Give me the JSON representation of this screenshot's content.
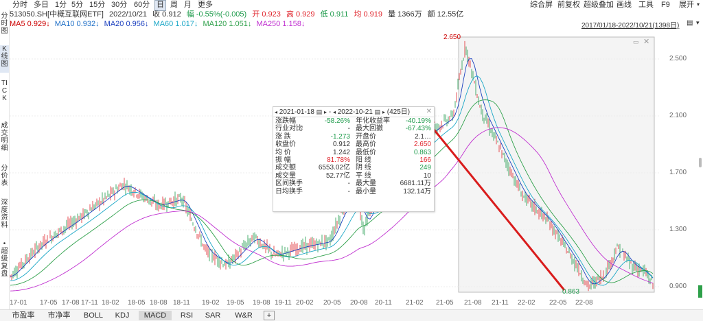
{
  "periods": [
    "分时",
    "多日",
    "1分",
    "5分",
    "15分",
    "30分",
    "60分",
    "日",
    "周",
    "月",
    "更多"
  ],
  "active_period": "日",
  "toolbar": [
    "综合屏",
    "前复权",
    "超级叠加",
    "画线",
    "工具",
    "F9",
    "展开"
  ],
  "quote": {
    "code": "513050.SH[中概互联网ETF]",
    "date": "2022/10/21",
    "close": "收 0.912",
    "change": "幅 -0.55%(-0.005)",
    "open": "开 0.923",
    "high": "高 0.929",
    "low": "低 0.911",
    "avg": "均 0.919",
    "volume": "量 1366万",
    "amount": "额 12.55亿"
  },
  "ma": [
    {
      "label": "MA5 0.929↓",
      "color": "#cc0000"
    },
    {
      "label": "MA10 0.932↓",
      "color": "#1e6fc7"
    },
    {
      "label": "MA20 0.956↓",
      "color": "#1a3fbf"
    },
    {
      "label": "MA60 1.017↓",
      "color": "#1ca7c7"
    },
    {
      "label": "MA120 1.051↓",
      "color": "#2ea04a"
    },
    {
      "label": "MA250 1.158↓",
      "color": "#c030d0"
    }
  ],
  "date_range": "2017/01/18-2022/10/21(1398日)",
  "left_tabs": [
    "分时图",
    "K线图",
    "TICK",
    "成交明细",
    "分价表",
    "深度资料",
    "•超级复盘"
  ],
  "y_ticks": [
    "2.500",
    "2.100",
    "1.700",
    "1.300",
    "0.900"
  ],
  "x_ticks": [
    "17-01",
    "17-05",
    "17-08",
    "17-11",
    "18-02",
    "18-05",
    "18-08",
    "18-11",
    "19-02",
    "19-05",
    "19-08",
    "19-11",
    "20-02",
    "20-05",
    "20-08",
    "20-11",
    "21-02",
    "21-05",
    "21-08",
    "21-11",
    "22-02",
    "22-05",
    "22-08"
  ],
  "annotations": {
    "high": "2.650",
    "low": "0.863"
  },
  "stats_panel": {
    "start": "2021-01-18",
    "end": "2022-10-21",
    "days": "(425日)",
    "rows": [
      [
        "涨跌幅",
        "-58.26%",
        "年化收益率",
        "-40.19%"
      ],
      [
        "行业对比",
        "-",
        "最大回撤",
        "-67.43%"
      ],
      [
        "涨 跌",
        "-1.273",
        "开盘价",
        "2.1…"
      ],
      [
        "收盘价",
        "0.912",
        "最高价",
        "2.650"
      ],
      [
        "均 价",
        "1.242",
        "最低价",
        "0.863"
      ],
      [
        "振 幅",
        "81.78%",
        "阳 线",
        "166"
      ],
      [
        "成交额",
        "6553.02亿",
        "阴 线",
        "249"
      ],
      [
        "成交量",
        "52.77亿",
        "平 线",
        "10"
      ],
      [
        "区间换手",
        "-",
        "最大量",
        "6681.11万"
      ],
      [
        "日均换手",
        "-",
        "最小量",
        "132.14万"
      ]
    ]
  },
  "bottom_tabs": [
    "市盈率",
    "市净率",
    "BOLL",
    "KDJ",
    "MACD",
    "RSI",
    "SAR",
    "W&R",
    "+"
  ],
  "active_bottom_tab": "MACD",
  "colors": {
    "up": "#e0262d",
    "down": "#1c9a4a",
    "arrow": "#d91c1c"
  }
}
